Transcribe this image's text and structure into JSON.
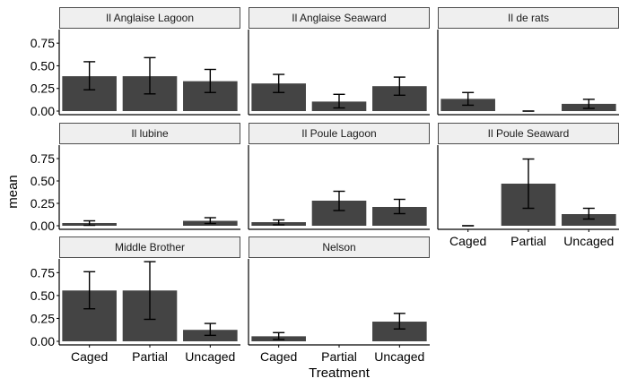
{
  "chart_data": {
    "type": "bar",
    "xlabel": "Treatment",
    "ylabel": "mean",
    "ylim": [
      0,
      0.9
    ],
    "yticks": [
      0.0,
      0.25,
      0.5,
      0.75
    ],
    "ytick_labels": [
      "0.00",
      "0.25",
      "0.50",
      "0.75"
    ],
    "categories": [
      "Caged",
      "Partial",
      "Uncaged"
    ],
    "colors": {
      "bar": "#444444",
      "strip_fill": "#efefef",
      "strip_border": "#4d4d4d",
      "axis": "#000000",
      "error": "#000000"
    },
    "facets": [
      {
        "name": "Il Anglaise Lagoon",
        "values": [
          0.385,
          0.385,
          0.33
        ],
        "lower": [
          0.235,
          0.19,
          0.205
        ],
        "upper": [
          0.545,
          0.59,
          0.46
        ]
      },
      {
        "name": "Il Anglaise Seaward",
        "values": [
          0.305,
          0.105,
          0.275
        ],
        "lower": [
          0.205,
          0.035,
          0.175
        ],
        "upper": [
          0.405,
          0.185,
          0.375
        ]
      },
      {
        "name": "Il de rats",
        "values": [
          0.135,
          0.0,
          0.08
        ],
        "lower": [
          0.065,
          0.0,
          0.03
        ],
        "upper": [
          0.205,
          0.0,
          0.13
        ]
      },
      {
        "name": "Il lubine",
        "values": [
          0.03,
          null,
          0.055
        ],
        "lower": [
          0.005,
          null,
          0.025
        ],
        "upper": [
          0.055,
          null,
          0.09
        ]
      },
      {
        "name": "Il Poule Lagoon",
        "values": [
          0.04,
          0.28,
          0.21
        ],
        "lower": [
          0.01,
          0.17,
          0.135
        ],
        "upper": [
          0.065,
          0.385,
          0.295
        ]
      },
      {
        "name": "Il Poule Seaward",
        "values": [
          0.0,
          0.47,
          0.13
        ],
        "lower": [
          0.0,
          0.195,
          0.075
        ],
        "upper": [
          0.0,
          0.745,
          0.195
        ]
      },
      {
        "name": "Middle Brother",
        "values": [
          0.555,
          0.555,
          0.125
        ],
        "lower": [
          0.355,
          0.24,
          0.065
        ],
        "upper": [
          0.76,
          0.87,
          0.195
        ]
      },
      {
        "name": "Nelson",
        "values": [
          0.055,
          null,
          0.215
        ],
        "lower": [
          0.02,
          null,
          0.135
        ],
        "upper": [
          0.095,
          null,
          0.305
        ]
      }
    ]
  }
}
